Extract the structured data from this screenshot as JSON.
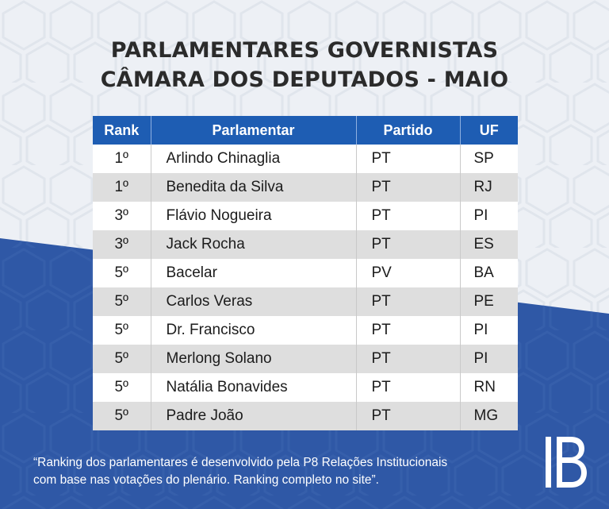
{
  "title_line1": "PARLAMENTARES GOVERNISTAS",
  "title_line2": "CÂMARA DOS DEPUTADOS - MAIO",
  "table": {
    "headers": [
      "Rank",
      "Parlamentar",
      "Partido",
      "UF"
    ],
    "rows": [
      {
        "rank": "1º",
        "name": "Arlindo Chinaglia",
        "party": "PT",
        "uf": "SP"
      },
      {
        "rank": "1º",
        "name": "Benedita da Silva",
        "party": "PT",
        "uf": "RJ"
      },
      {
        "rank": "3º",
        "name": "Flávio Nogueira",
        "party": "PT",
        "uf": "PI"
      },
      {
        "rank": "3º",
        "name": "Jack Rocha",
        "party": "PT",
        "uf": "ES"
      },
      {
        "rank": "5º",
        "name": "Bacelar",
        "party": "PV",
        "uf": "BA"
      },
      {
        "rank": "5º",
        "name": "Carlos Veras",
        "party": "PT",
        "uf": "PE"
      },
      {
        "rank": "5º",
        "name": "Dr. Francisco",
        "party": "PT",
        "uf": "PI"
      },
      {
        "rank": "5º",
        "name": "Merlong Solano",
        "party": "PT",
        "uf": "PI"
      },
      {
        "rank": "5º",
        "name": "Natália Bonavides",
        "party": "PT",
        "uf": "RN"
      },
      {
        "rank": "5º",
        "name": "Padre João",
        "party": "PT",
        "uf": "MG"
      }
    ]
  },
  "footer_line1": "“Ranking dos parlamentares é desenvolvido pela P8 Relações Institucionais",
  "footer_line2": "com base nas votações do plenário. Ranking completo no site”.",
  "logo_icon": "ib-logo-icon",
  "colors": {
    "header_blue": "#1e5db3",
    "background_light": "#edf0f5",
    "background_blue": "#2f58a6",
    "row_alt": "#dedede",
    "title_text": "#2b2b2b"
  }
}
